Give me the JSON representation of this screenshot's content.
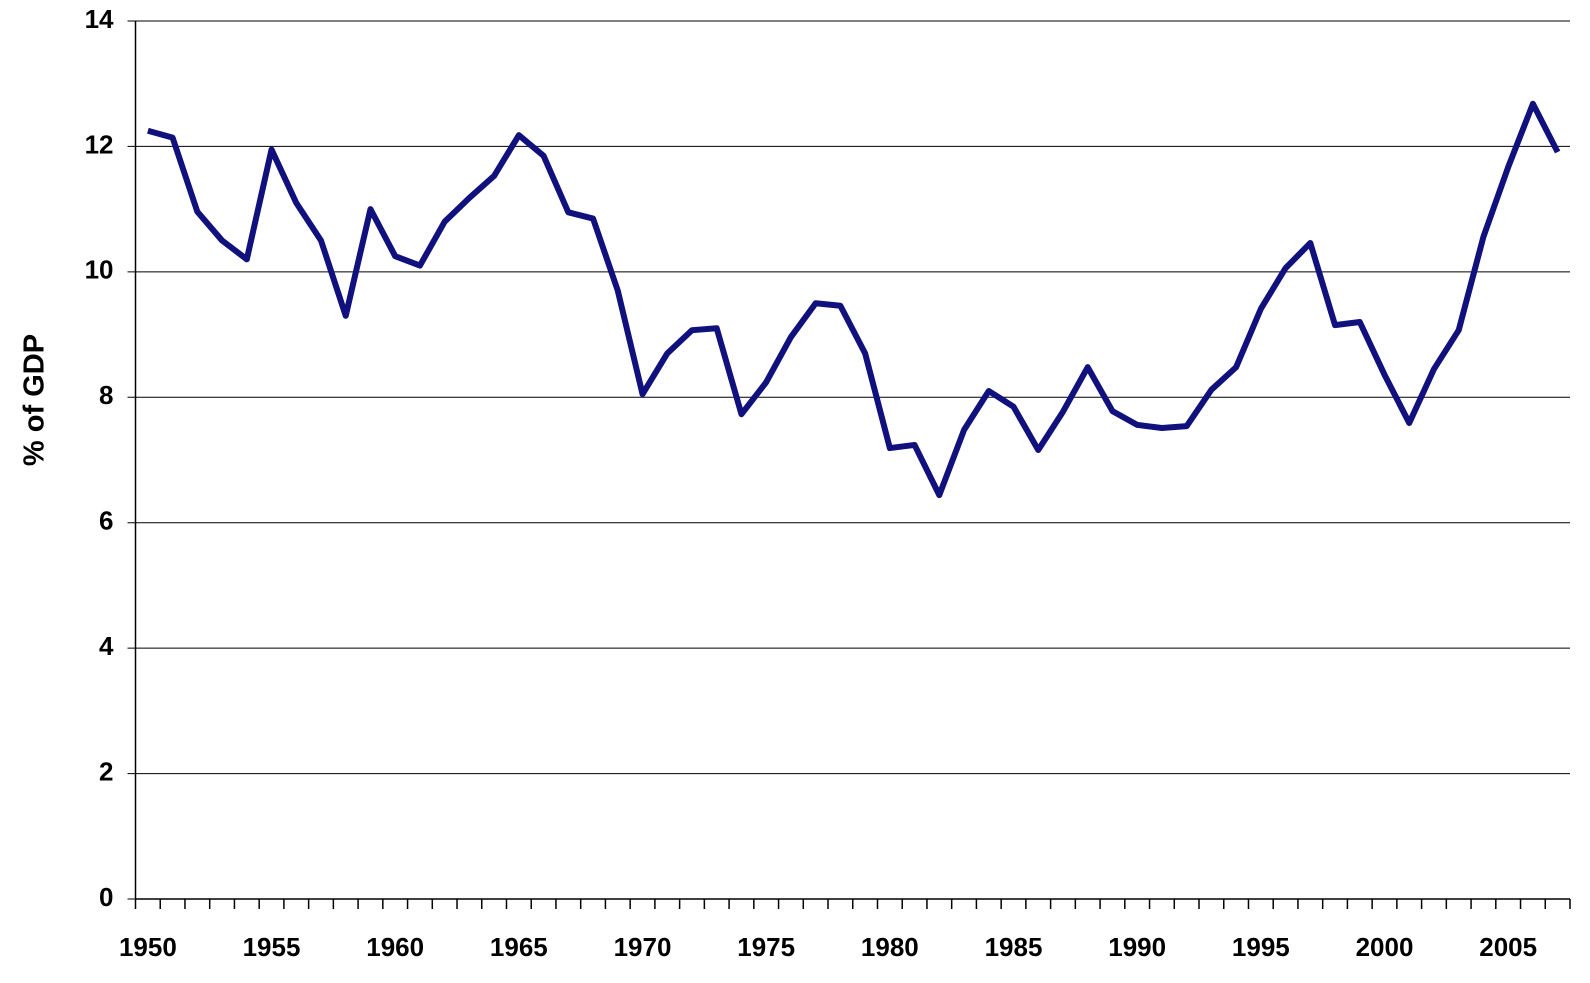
{
  "chart_data": {
    "type": "line",
    "y_label": "% of GDP",
    "categories": [
      "1950",
      null,
      null,
      null,
      null,
      "1955",
      null,
      null,
      null,
      null,
      "1960",
      null,
      null,
      null,
      null,
      "1965",
      null,
      null,
      null,
      null,
      "1970",
      null,
      null,
      null,
      null,
      "1975",
      null,
      null,
      null,
      null,
      "1980",
      null,
      null,
      null,
      null,
      "1985",
      null,
      null,
      null,
      null,
      "1990",
      null,
      null,
      null,
      null,
      "1995",
      null,
      null,
      null,
      null,
      "2000",
      null,
      null,
      null,
      null,
      "2005",
      null,
      null
    ],
    "values": [
      12.25,
      12.14,
      10.96,
      10.5,
      10.2,
      11.95,
      11.1,
      10.5,
      9.3,
      11.0,
      10.25,
      10.1,
      10.8,
      11.18,
      11.53,
      12.18,
      11.85,
      10.95,
      10.85,
      9.7,
      8.05,
      8.7,
      9.07,
      9.1,
      7.73,
      8.24,
      8.96,
      9.5,
      9.46,
      8.7,
      7.19,
      7.24,
      6.44,
      7.48,
      8.1,
      7.85,
      7.16,
      7.77,
      8.48,
      7.78,
      7.56,
      7.51,
      7.54,
      8.12,
      8.48,
      9.41,
      10.06,
      10.46,
      9.15,
      9.2,
      8.36,
      7.59,
      8.45,
      9.07,
      10.56,
      11.67,
      12.68,
      11.91
    ],
    "color": "#11117e",
    "ylim": [
      0,
      14
    ],
    "yticks": [
      0,
      2,
      4,
      6,
      8,
      10,
      12,
      14
    ],
    "grid": true
  }
}
